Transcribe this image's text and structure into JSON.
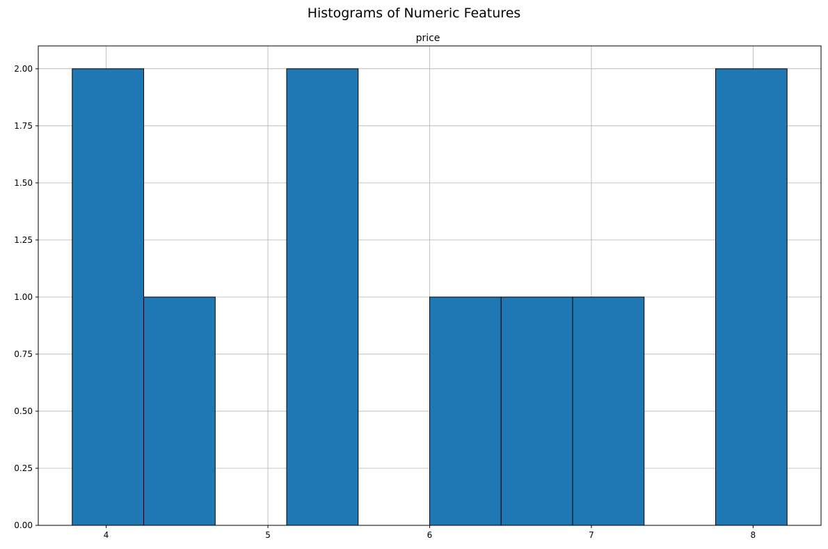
{
  "figure": {
    "title": "Histograms of Numeric Features"
  },
  "chart_data": {
    "type": "bar",
    "title": "price",
    "xlabel": "",
    "ylabel": "",
    "bin_edges": [
      3.79,
      4.232,
      4.674,
      5.116,
      5.558,
      6.0,
      6.442,
      6.884,
      7.326,
      7.768,
      8.21
    ],
    "values": [
      2,
      1,
      0,
      2,
      0,
      1,
      1,
      1,
      0,
      2
    ],
    "xlim": [
      3.58,
      8.42
    ],
    "ylim": [
      0,
      2.1
    ],
    "xticks": [
      4,
      5,
      6,
      7,
      8
    ],
    "xtick_labels": [
      "4",
      "5",
      "6",
      "7",
      "8"
    ],
    "yticks": [
      0,
      0.25,
      0.5,
      0.75,
      1.0,
      1.25,
      1.5,
      1.75,
      2.0
    ],
    "ytick_labels": [
      "0.00",
      "0.25",
      "0.50",
      "0.75",
      "1.00",
      "1.25",
      "1.50",
      "1.75",
      "2.00"
    ],
    "grid": true,
    "bar_color": "#1f77b4",
    "edge_color": "#000000"
  }
}
